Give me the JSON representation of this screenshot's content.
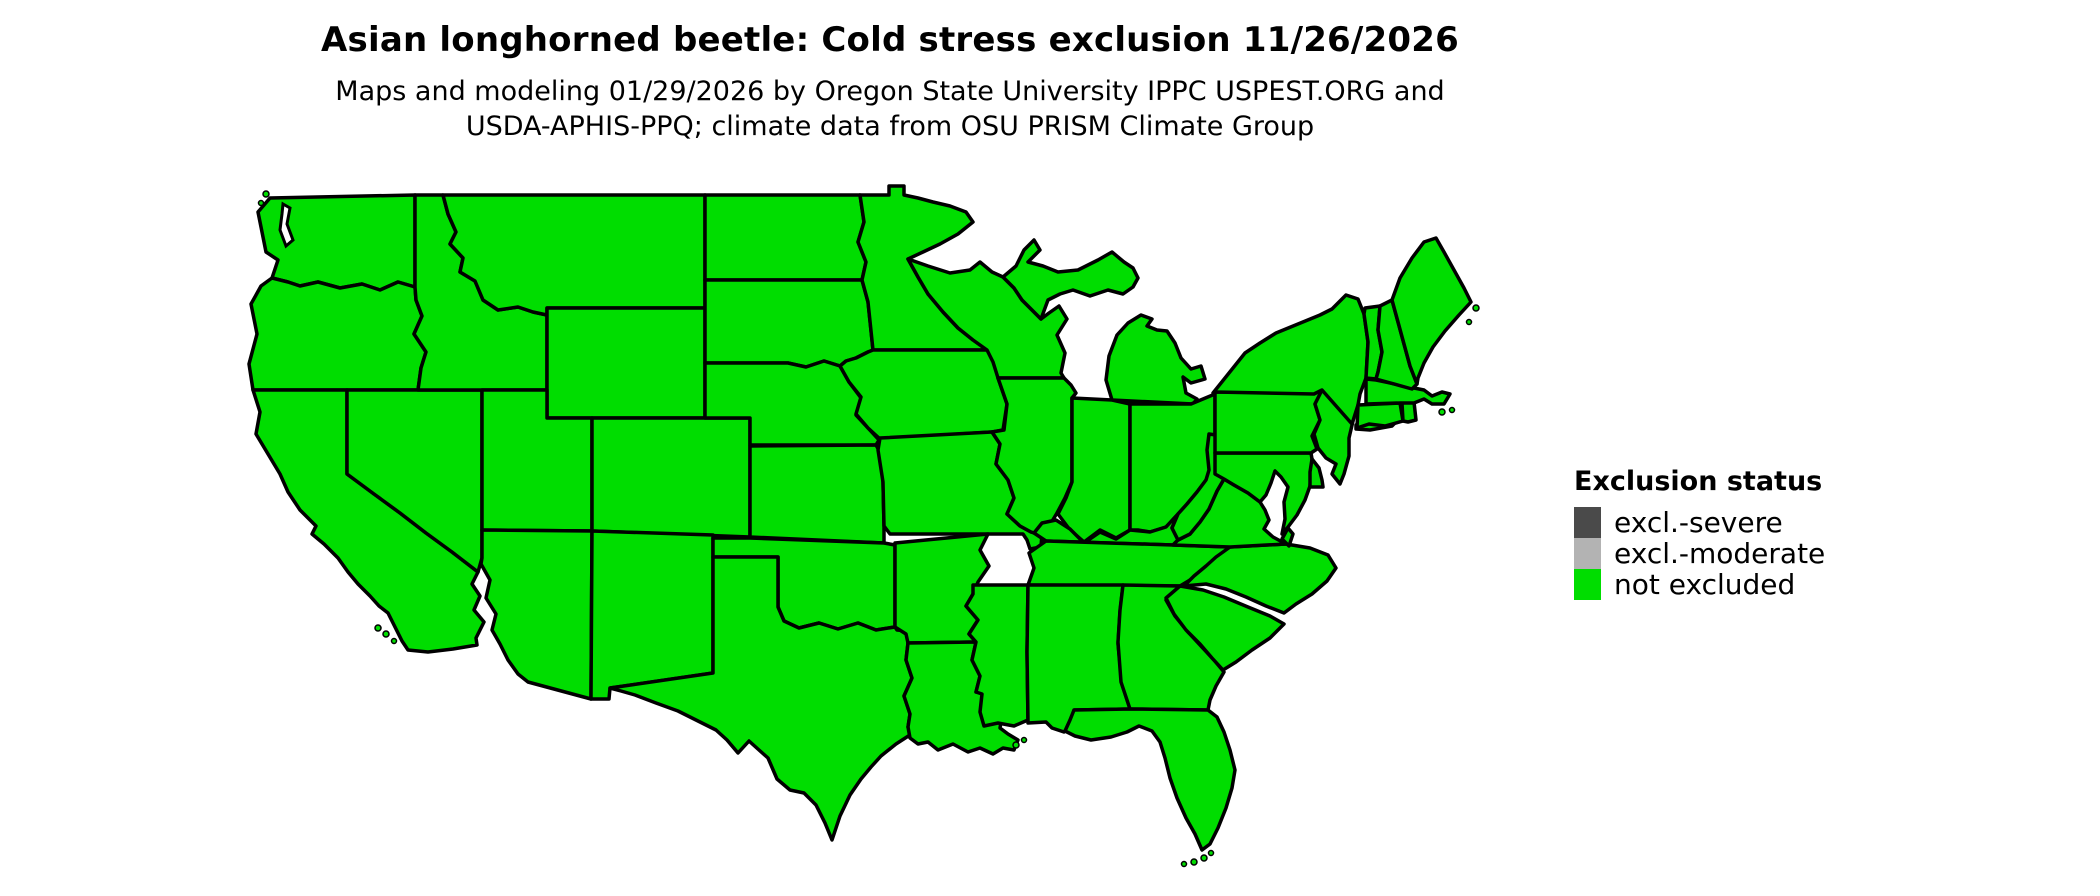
{
  "header": {
    "title": "Asian longhorned beetle: Cold stress exclusion 11/26/2026",
    "subtitle_line1": "Maps and modeling 01/29/2026 by Oregon State University IPPC USPEST.ORG and",
    "subtitle_line2": "USDA-APHIS-PPQ; climate data from OSU PRISM Climate Group"
  },
  "legend": {
    "title": "Exclusion status",
    "items": [
      {
        "label": "excl.-severe",
        "color": "#4a4a4a"
      },
      {
        "label": "excl.-moderate",
        "color": "#b3b3b3"
      },
      {
        "label": "not excluded",
        "color": "#00dd00"
      }
    ]
  },
  "map": {
    "region": "contiguous United States",
    "fill_status": "not excluded",
    "fill_color": "#00dd00",
    "border_color": "#000000",
    "water_color": "#ffffff"
  }
}
